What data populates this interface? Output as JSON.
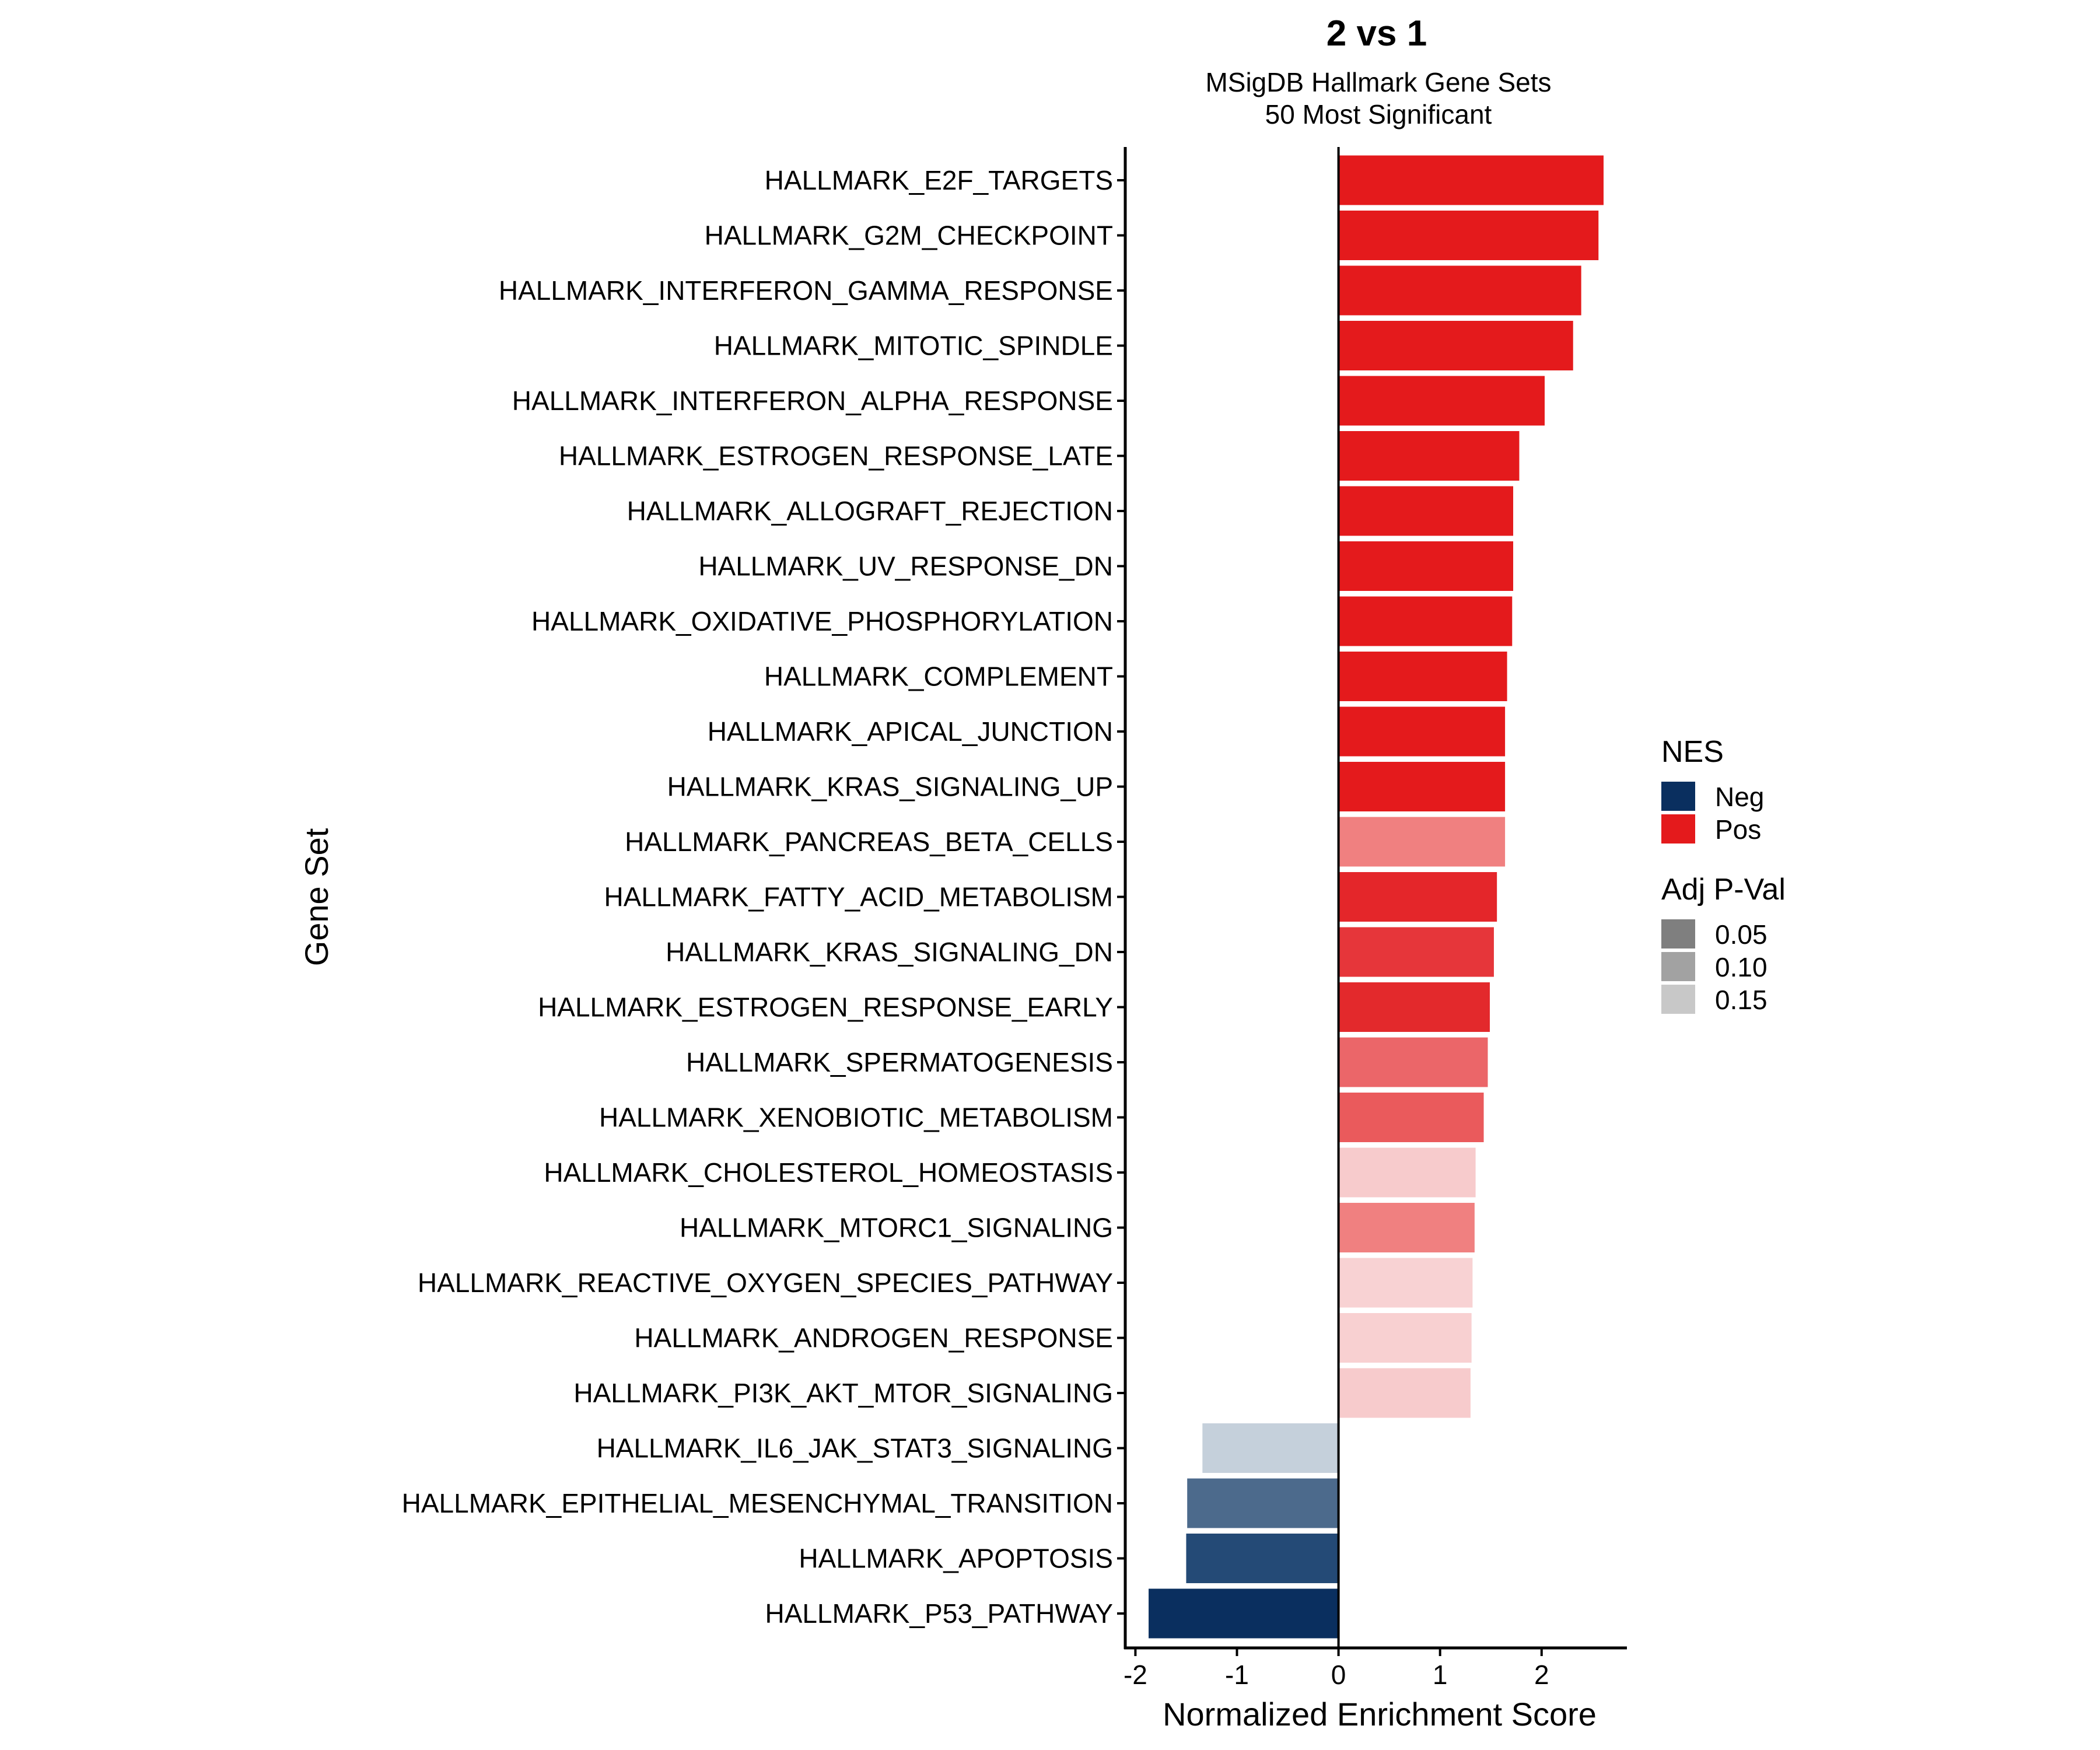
{
  "chart_data": {
    "type": "bar",
    "orientation": "horizontal",
    "title": "2 vs 1",
    "subtitle": [
      "MSigDB Hallmark Gene Sets",
      "50 Most Significant"
    ],
    "xlabel": "Normalized Enrichment Score",
    "ylabel": "Gene Set",
    "xlim": [
      -2.1,
      2.84
    ],
    "xticks": [
      -2,
      -1,
      0,
      1,
      2
    ],
    "xtick_labels": [
      "-2",
      "-1",
      "0",
      "1",
      "2"
    ],
    "grid": false,
    "categories": [
      "HALLMARK_E2F_TARGETS",
      "HALLMARK_G2M_CHECKPOINT",
      "HALLMARK_INTERFERON_GAMMA_RESPONSE",
      "HALLMARK_MITOTIC_SPINDLE",
      "HALLMARK_INTERFERON_ALPHA_RESPONSE",
      "HALLMARK_ESTROGEN_RESPONSE_LATE",
      "HALLMARK_ALLOGRAFT_REJECTION",
      "HALLMARK_UV_RESPONSE_DN",
      "HALLMARK_OXIDATIVE_PHOSPHORYLATION",
      "HALLMARK_COMPLEMENT",
      "HALLMARK_APICAL_JUNCTION",
      "HALLMARK_KRAS_SIGNALING_UP",
      "HALLMARK_PANCREAS_BETA_CELLS",
      "HALLMARK_FATTY_ACID_METABOLISM",
      "HALLMARK_KRAS_SIGNALING_DN",
      "HALLMARK_ESTROGEN_RESPONSE_EARLY",
      "HALLMARK_SPERMATOGENESIS",
      "HALLMARK_XENOBIOTIC_METABOLISM",
      "HALLMARK_CHOLESTEROL_HOMEOSTASIS",
      "HALLMARK_MTORC1_SIGNALING",
      "HALLMARK_REACTIVE_OXYGEN_SPECIES_PATHWAY",
      "HALLMARK_ANDROGEN_RESPONSE",
      "HALLMARK_PI3K_AKT_MTOR_SIGNALING",
      "HALLMARK_IL6_JAK_STAT3_SIGNALING",
      "HALLMARK_EPITHELIAL_MESENCHYMAL_TRANSITION",
      "HALLMARK_APOPTOSIS",
      "HALLMARK_P53_PATHWAY"
    ],
    "values": [
      2.61,
      2.56,
      2.39,
      2.31,
      2.03,
      1.78,
      1.72,
      1.72,
      1.71,
      1.66,
      1.64,
      1.64,
      1.64,
      1.56,
      1.53,
      1.49,
      1.47,
      1.43,
      1.35,
      1.34,
      1.32,
      1.31,
      1.3,
      -1.34,
      -1.49,
      -1.5,
      -1.87
    ],
    "bar_colors": [
      "#E41A1C",
      "#E41A1C",
      "#E41A1C",
      "#E41A1C",
      "#E41A1C",
      "#E41A1C",
      "#E41A1C",
      "#E41A1C",
      "#E41A1C",
      "#E41A1C",
      "#E41A1C",
      "#E41A1C",
      "#F08080",
      "#E4262A",
      "#E6363A",
      "#E3292C",
      "#EB6669",
      "#EA5A5C",
      "#F7CBCC",
      "#F08080",
      "#F8D2D3",
      "#F8D0D1",
      "#F7CBCC",
      "#C5D0DB",
      "#4C6A8C",
      "#244A76",
      "#0A2F5F"
    ],
    "legend": {
      "placement": "right",
      "nes": {
        "title": "NES",
        "items": [
          {
            "label": "Neg",
            "color": "#0A2F5F"
          },
          {
            "label": "Pos",
            "color": "#E41A1C"
          }
        ]
      },
      "padj": {
        "title": "Adj P-Val",
        "items": [
          {
            "label": "0.05",
            "color": "#7F7F7F"
          },
          {
            "label": "0.10",
            "color": "#A2A2A2"
          },
          {
            "label": "0.15",
            "color": "#C8C8C8"
          }
        ]
      }
    }
  }
}
